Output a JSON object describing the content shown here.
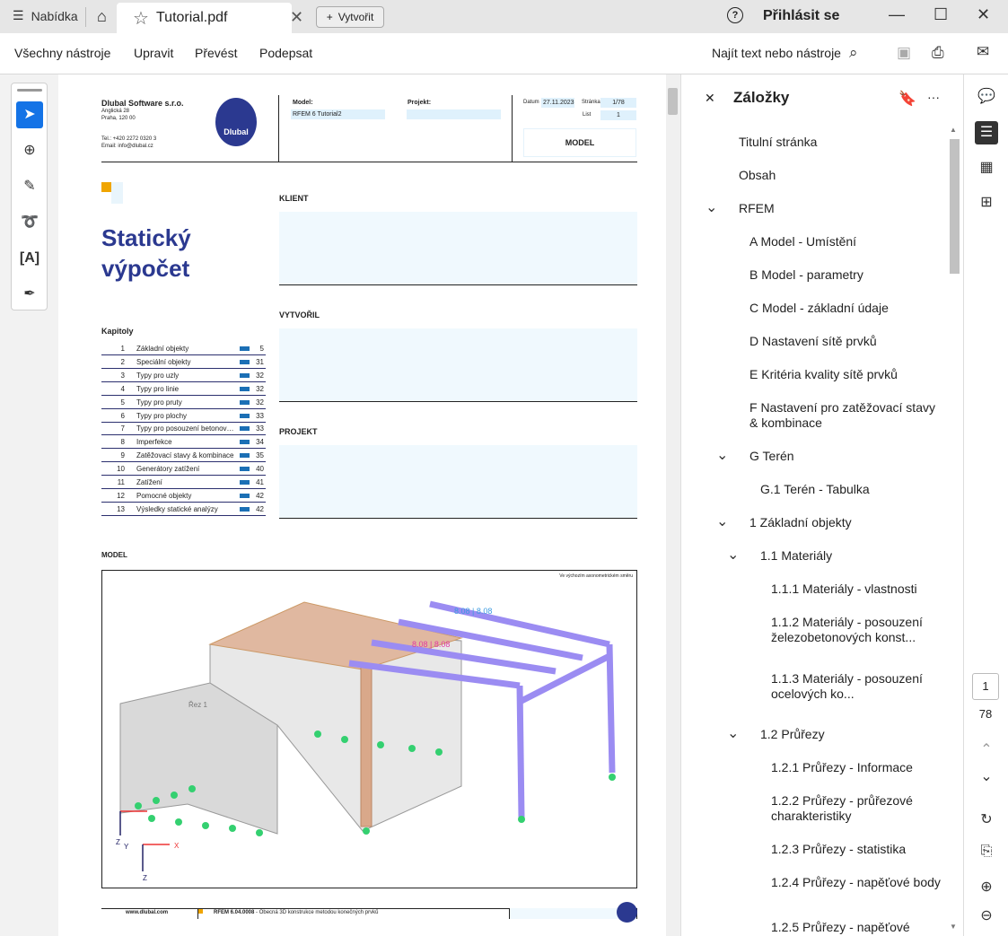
{
  "titlebar": {
    "menu": "Nabídka",
    "tab_title": "Tutorial.pdf",
    "create": "Vytvořit",
    "help": "?",
    "signin": "Přihlásit se"
  },
  "toolbar": {
    "items": [
      "Všechny nástroje",
      "Upravit",
      "Převést",
      "Podepsat"
    ],
    "find": "Najít text nebo nástroje"
  },
  "pdf": {
    "company": "Dlubal Software s.r.o.",
    "address1": "Anglická 28",
    "address2": "Praha, 120 00",
    "tel": "Tel.: +420 2272 0320 3",
    "email": "Email: info@dlubal.cz",
    "logo": "Dlubal",
    "model_label": "Model:",
    "model_value": "RFEM 6 Tutorial2",
    "project_label": "Projekt:",
    "date_label": "Datum",
    "date_value": "27.11.2023",
    "pages_label": "Stránka",
    "pages_value": "1/78",
    "sheet_label": "List",
    "sheet_value": "1",
    "model_heading": "MODEL",
    "title1": "Statický",
    "title2": "výpočet",
    "client": "KLIENT",
    "created_by": "VYTVOŘIL",
    "project": "PROJEKT",
    "chapters_title": "Kapitoly",
    "chapters": [
      {
        "n": "1",
        "t": "Základní objekty",
        "p": "5"
      },
      {
        "n": "2",
        "t": "Speciální objekty",
        "p": "31"
      },
      {
        "n": "3",
        "t": "Typy pro uzly",
        "p": "32"
      },
      {
        "n": "4",
        "t": "Typy pro linie",
        "p": "32"
      },
      {
        "n": "5",
        "t": "Typy pro pruty",
        "p": "32"
      },
      {
        "n": "6",
        "t": "Typy pro plochy",
        "p": "33"
      },
      {
        "n": "7",
        "t": "Typy pro posouzení betonový...",
        "p": "33"
      },
      {
        "n": "8",
        "t": "Imperfekce",
        "p": "34"
      },
      {
        "n": "9",
        "t": "Zatěžovací stavy & kombinace",
        "p": "35"
      },
      {
        "n": "10",
        "t": "Generátory zatížení",
        "p": "40"
      },
      {
        "n": "11",
        "t": "Zatížení",
        "p": "41"
      },
      {
        "n": "12",
        "t": "Pomocné objekty",
        "p": "42"
      },
      {
        "n": "13",
        "t": "Výsledky statické analýzy",
        "p": "42"
      }
    ],
    "model_section": "MODEL",
    "view_note": "Ve výchozím axonometrickém směru",
    "dim1": "8.08 | 8.08",
    "dim2": "8.08 | 8.08",
    "section_label": "Řez 1",
    "axes": {
      "x": "X",
      "y": "Y",
      "z": "Z"
    },
    "footer_site": "www.dlubal.com",
    "footer_version": "RFEM 6.04.0008",
    "footer_desc": " - Obecná 3D konstrukce metodou konečných prvků"
  },
  "bookmarks": {
    "title": "Záložky",
    "items": [
      {
        "label": "Titulní stránka",
        "level": 0
      },
      {
        "label": "Obsah",
        "level": 0
      },
      {
        "label": "RFEM",
        "level": 0,
        "expanded": true
      },
      {
        "label": "A Model - Umístění",
        "level": 1
      },
      {
        "label": "B Model - parametry",
        "level": 1
      },
      {
        "label": "C Model - základní údaje",
        "level": 1
      },
      {
        "label": "D Nastavení sítě prvků",
        "level": 1
      },
      {
        "label": "E Kritéria kvality sítě prvků",
        "level": 1
      },
      {
        "label": "F Nastavení pro zatěžovací stavy & kombinace",
        "level": 1
      },
      {
        "label": "G Terén",
        "level": 1,
        "expanded": true
      },
      {
        "label": "G.1 Terén - Tabulka",
        "level": 2
      },
      {
        "label": "1 Základní objekty",
        "level": 1,
        "expanded": true
      },
      {
        "label": "1.1 Materiály",
        "level": 2,
        "expanded": true
      },
      {
        "label": "1.1.1 Materiály - vlastnosti",
        "level": 3
      },
      {
        "label": "1.1.2 Materiály - posouzení železobetonových konst...",
        "level": 3
      },
      {
        "label": "1.1.3 Materiály - posouzení ocelových ko...",
        "level": 3
      },
      {
        "label": "1.2 Průřezy",
        "level": 2,
        "expanded": true
      },
      {
        "label": "1.2.1 Průřezy - Informace",
        "level": 3
      },
      {
        "label": "1.2.2 Průřezy - průřezové charakteristiky",
        "level": 3
      },
      {
        "label": "1.2.3 Průřezy - statistika",
        "level": 3
      },
      {
        "label": "1.2.4 Průřezy - napěťové body",
        "level": 3
      },
      {
        "label": "1.2.5 Průřezy - napěťové",
        "level": 3
      }
    ]
  },
  "nav": {
    "current_page": "1",
    "total_pages": "78"
  },
  "colors": {
    "accent": "#1473e6",
    "brand": "#2b3990",
    "member": "#8a7cf0",
    "support": "#2ecc71"
  }
}
